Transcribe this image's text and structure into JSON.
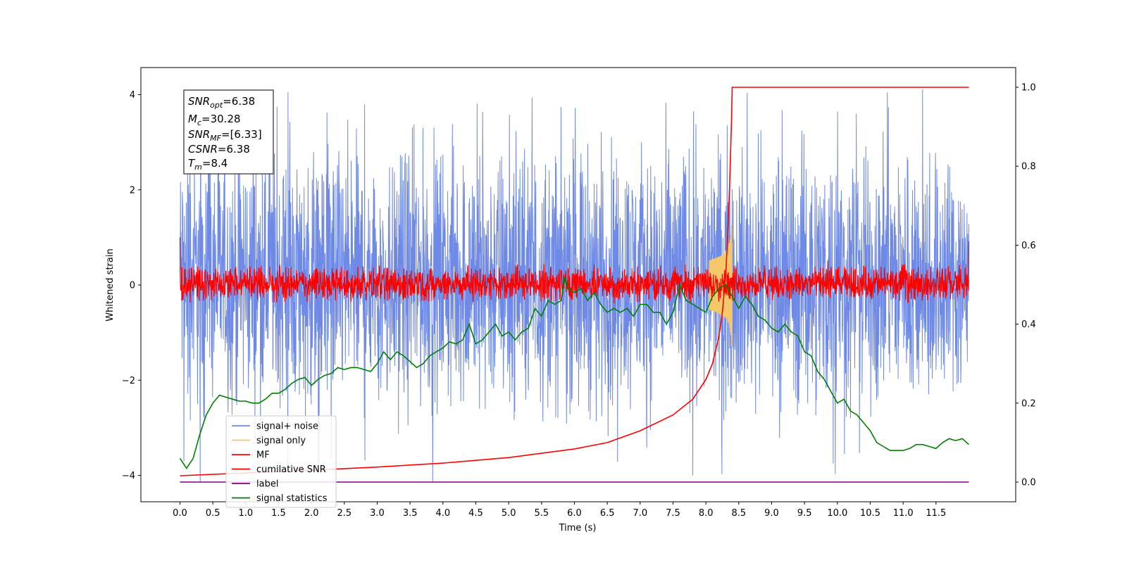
{
  "chart_data": {
    "type": "line",
    "xlabel": "Time (s)",
    "ylabel": "Whitened strain",
    "xlim": [
      -0.6,
      12.6
    ],
    "ylim": [
      -4.6,
      4.6
    ],
    "y2lim": [
      -0.05,
      1.05
    ],
    "xticks": [
      "0.0",
      "0.5",
      "1.0",
      "1.5",
      "2.0",
      "2.5",
      "3.0",
      "3.5",
      "4.0",
      "4.5",
      "5.0",
      "5.5",
      "6.0",
      "6.5",
      "7.0",
      "7.5",
      "8.0",
      "8.5",
      "9.0",
      "9.5",
      "10.0",
      "10.5",
      "11.0",
      "11.5"
    ],
    "yticks": [
      "−4",
      "−2",
      "0",
      "2",
      "4"
    ],
    "y2ticks": [
      "0.0",
      "0.2",
      "0.4",
      "0.6",
      "0.8",
      "1.0"
    ],
    "legend_position": "lower-left",
    "info_box": {
      "snr_opt": "=6.38",
      "mc": "=30.28",
      "snr_mf": "=[6.33]",
      "csnr": "=6.38",
      "tm": "=8.4"
    },
    "series": [
      {
        "name": "signal+ noise",
        "color": "#6f8ae6",
        "kind": "noise",
        "x_range": [
          0,
          12
        ],
        "typical_band": [
          -1.6,
          1.9
        ],
        "extremes": [
          -4.15,
          4.15
        ]
      },
      {
        "name": "signal only",
        "color": "#f5c96a",
        "kind": "chirp",
        "merger_time": 8.4,
        "peak": 1.5
      },
      {
        "name": "MF",
        "color": "#ff0000",
        "kind": "noise",
        "x_range": [
          0,
          12
        ],
        "typical_band": [
          -0.25,
          0.3
        ],
        "edge_values": [
          1.0,
          0.92
        ]
      },
      {
        "name": "cumilative SNR",
        "color": "#ff0000",
        "axis": "right",
        "x": [
          0,
          1,
          2,
          3,
          4,
          5,
          6,
          6.5,
          7,
          7.5,
          7.8,
          8.0,
          8.1,
          8.2,
          8.25,
          8.3,
          8.33,
          8.36,
          8.39,
          8.4,
          12
        ],
        "y": [
          0.016,
          0.023,
          0.03,
          0.038,
          0.048,
          0.062,
          0.084,
          0.1,
          0.13,
          0.17,
          0.21,
          0.26,
          0.3,
          0.37,
          0.43,
          0.52,
          0.62,
          0.75,
          0.92,
          1.0,
          1.0
        ]
      },
      {
        "name": "label",
        "color": "#800080",
        "axis": "right",
        "x": [
          0,
          12
        ],
        "y": [
          0.0,
          0.0
        ]
      },
      {
        "name": "signal statistics",
        "color": "#008000",
        "axis": "right",
        "x": [
          0.0,
          0.1,
          0.2,
          0.3,
          0.4,
          0.5,
          0.6,
          0.7,
          0.8,
          0.9,
          1.0,
          1.1,
          1.2,
          1.3,
          1.4,
          1.5,
          1.6,
          1.7,
          1.8,
          1.9,
          2.0,
          2.1,
          2.2,
          2.3,
          2.4,
          2.5,
          2.6,
          2.7,
          2.8,
          2.9,
          3.0,
          3.1,
          3.2,
          3.3,
          3.4,
          3.5,
          3.6,
          3.7,
          3.8,
          3.9,
          4.0,
          4.1,
          4.2,
          4.3,
          4.4,
          4.5,
          4.6,
          4.7,
          4.8,
          4.9,
          5.0,
          5.1,
          5.2,
          5.3,
          5.4,
          5.5,
          5.6,
          5.7,
          5.8,
          5.85,
          5.9,
          6.0,
          6.1,
          6.2,
          6.3,
          6.4,
          6.5,
          6.6,
          6.7,
          6.8,
          6.9,
          7.0,
          7.1,
          7.2,
          7.3,
          7.4,
          7.5,
          7.6,
          7.7,
          7.8,
          7.9,
          8.0,
          8.1,
          8.2,
          8.3,
          8.4,
          8.5,
          8.6,
          8.7,
          8.8,
          8.9,
          9.0,
          9.1,
          9.2,
          9.3,
          9.4,
          9.5,
          9.6,
          9.7,
          9.8,
          9.9,
          10.0,
          10.1,
          10.2,
          10.3,
          10.4,
          10.5,
          10.6,
          10.7,
          10.8,
          10.9,
          11.0,
          11.1,
          11.2,
          11.3,
          11.4,
          11.5,
          11.6,
          11.7,
          11.8,
          11.9,
          12.0
        ],
        "y": [
          0.06,
          0.035,
          0.06,
          0.12,
          0.17,
          0.2,
          0.22,
          0.215,
          0.21,
          0.205,
          0.205,
          0.2,
          0.2,
          0.21,
          0.225,
          0.225,
          0.235,
          0.25,
          0.26,
          0.265,
          0.245,
          0.26,
          0.27,
          0.275,
          0.29,
          0.285,
          0.29,
          0.29,
          0.285,
          0.28,
          0.3,
          0.33,
          0.31,
          0.33,
          0.32,
          0.305,
          0.29,
          0.3,
          0.32,
          0.33,
          0.34,
          0.355,
          0.35,
          0.36,
          0.4,
          0.35,
          0.36,
          0.38,
          0.4,
          0.37,
          0.38,
          0.36,
          0.38,
          0.39,
          0.44,
          0.42,
          0.46,
          0.45,
          0.46,
          0.52,
          0.49,
          0.48,
          0.49,
          0.46,
          0.48,
          0.45,
          0.43,
          0.44,
          0.43,
          0.44,
          0.42,
          0.45,
          0.45,
          0.43,
          0.43,
          0.4,
          0.43,
          0.5,
          0.46,
          0.45,
          0.44,
          0.43,
          0.47,
          0.49,
          0.5,
          0.47,
          0.44,
          0.47,
          0.45,
          0.42,
          0.41,
          0.39,
          0.38,
          0.4,
          0.38,
          0.37,
          0.33,
          0.32,
          0.28,
          0.26,
          0.23,
          0.2,
          0.21,
          0.18,
          0.17,
          0.15,
          0.13,
          0.1,
          0.09,
          0.08,
          0.08,
          0.08,
          0.085,
          0.095,
          0.095,
          0.09,
          0.085,
          0.1,
          0.11,
          0.105,
          0.11,
          0.095
        ]
      }
    ]
  }
}
